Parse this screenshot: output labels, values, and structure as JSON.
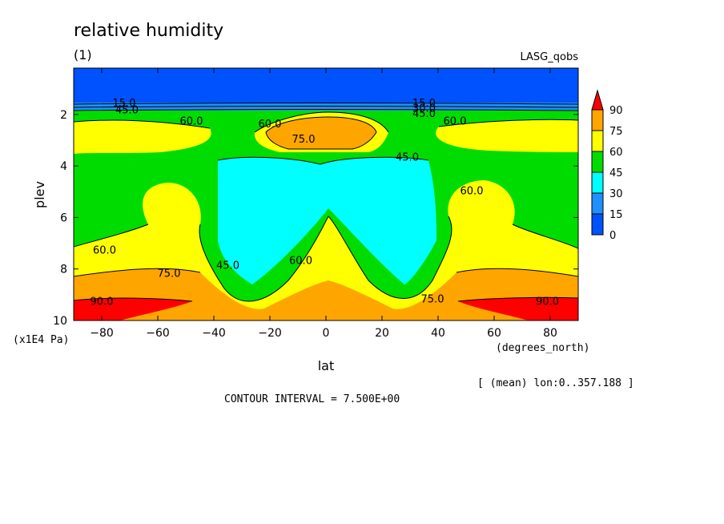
{
  "header": {
    "title": "relative humidity",
    "subtitle": "(1)",
    "dataset": "LASG_qobs"
  },
  "footer": {
    "mean_note": "[ (mean) lon:0..357.188 ]",
    "contour_interval": "CONTOUR INTERVAL = 7.500E+00"
  },
  "chart_data": {
    "type": "contour-filled",
    "title": "relative humidity",
    "xlabel": "lat",
    "xunits": "(degrees_north)",
    "ylabel": "plev",
    "yunits": "(x1E4 Pa)",
    "xlim": [
      -90,
      90
    ],
    "ylim": [
      10,
      0.2
    ],
    "y_inverted": true,
    "x_ticks": [
      -80,
      -60,
      -40,
      -20,
      0,
      20,
      40,
      60,
      80
    ],
    "x_tick_labels": [
      "−80",
      "−60",
      "−40",
      "−20",
      "0",
      "20",
      "40",
      "60",
      "80"
    ],
    "y_ticks": [
      2,
      4,
      6,
      8,
      10
    ],
    "y_tick_labels": [
      "2",
      "4",
      "6",
      "8",
      "10"
    ],
    "contour_interval": 7.5,
    "colorbar": {
      "levels": [
        0,
        15,
        30,
        45,
        60,
        75,
        90
      ],
      "labels": [
        "0",
        "15",
        "30",
        "45",
        "60",
        "75",
        "90"
      ],
      "colors": [
        "#0052ff",
        "#1e90ff",
        "#00ffff",
        "#00dc00",
        "#ffff00",
        "#ffa500",
        "#ff0000"
      ],
      "extend": "max"
    },
    "contour_labels": [
      {
        "text": "15.0",
        "lat": -72,
        "plev": 1.7
      },
      {
        "text": "45.0",
        "lat": -71,
        "plev": 1.95
      },
      {
        "text": "60.0",
        "lat": -48,
        "plev": 2.4
      },
      {
        "text": "60.0",
        "lat": -20,
        "plev": 2.5
      },
      {
        "text": "75.0",
        "lat": -8,
        "plev": 3.1
      },
      {
        "text": "15.0",
        "lat": 35,
        "plev": 1.7
      },
      {
        "text": "30.0",
        "lat": 35,
        "plev": 1.9
      },
      {
        "text": "45.0",
        "lat": 35,
        "plev": 2.1
      },
      {
        "text": "60.0",
        "lat": 46,
        "plev": 2.4
      },
      {
        "text": "45.0",
        "lat": 29,
        "plev": 3.8
      },
      {
        "text": "60.0",
        "lat": 52,
        "plev": 5.1
      },
      {
        "text": "60.0",
        "lat": -79,
        "plev": 7.4
      },
      {
        "text": "75.0",
        "lat": -56,
        "plev": 8.3
      },
      {
        "text": "45.0",
        "lat": -35,
        "plev": 8.0
      },
      {
        "text": "60.0",
        "lat": -9,
        "plev": 7.8
      },
      {
        "text": "75.0",
        "lat": 38,
        "plev": 9.3
      },
      {
        "text": "90.0",
        "lat": -80,
        "plev": 9.4
      },
      {
        "text": "90.0",
        "lat": 79,
        "plev": 9.4
      }
    ]
  }
}
